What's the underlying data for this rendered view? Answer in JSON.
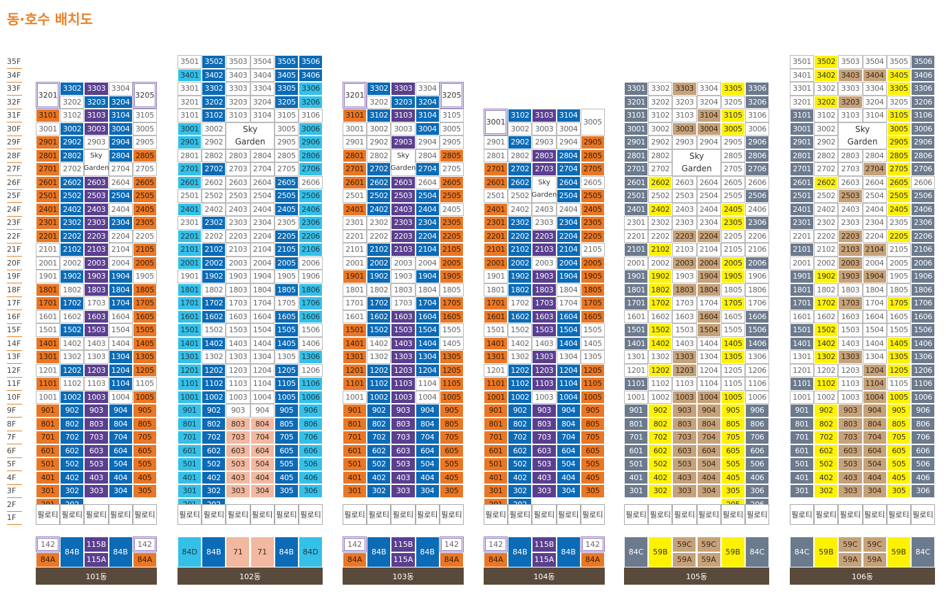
{
  "title": "동·호수 배치도",
  "floors": [
    "35F",
    "34F",
    "33F",
    "32F",
    "31F",
    "30F",
    "29F",
    "28F",
    "27F",
    "26F",
    "25F",
    "24F",
    "23F",
    "22F",
    "21F",
    "20F",
    "19F",
    "18F",
    "17F",
    "16F",
    "15F",
    "14F",
    "13F",
    "12F",
    "11F",
    "10F",
    "9F",
    "8F",
    "7F",
    "6F",
    "5F",
    "4F",
    "3F",
    "2F",
    "1F"
  ],
  "pilotis_label": "필로티",
  "sky_garden": "Sky Garden",
  "colors": {
    "orange": "#e97726",
    "blue": "#0b6bb6",
    "purple": "#5b3f8f",
    "cyan": "#35c0e8",
    "salmon": "#f2b8a0",
    "gray": "#6c7a8e",
    "yellow": "#fff200",
    "tan": "#c6a27a"
  },
  "buildings": [
    {
      "name": "101동",
      "types": [
        {
          "label": "142",
          "color": "w"
        },
        {
          "label": "84A",
          "color": "o"
        },
        {
          "label": "84B",
          "color": "b"
        },
        {
          "label": "115B",
          "color": "p"
        },
        {
          "label": "115A",
          "color": "p"
        },
        {
          "label": "84B",
          "color": "b"
        },
        {
          "label": "142",
          "color": "w"
        },
        {
          "label": "84A",
          "color": "o"
        }
      ]
    },
    {
      "name": "102동",
      "types": [
        {
          "label": "84D",
          "color": "c"
        },
        {
          "label": "84B",
          "color": "b"
        },
        {
          "label": "71",
          "color": "s"
        },
        {
          "label": "71",
          "color": "s"
        },
        {
          "label": "84B",
          "color": "b"
        },
        {
          "label": "84D",
          "color": "c"
        }
      ]
    },
    {
      "name": "103동",
      "types": [
        {
          "label": "142",
          "color": "w"
        },
        {
          "label": "84A",
          "color": "o"
        },
        {
          "label": "84B",
          "color": "b"
        },
        {
          "label": "115B",
          "color": "p"
        },
        {
          "label": "115A",
          "color": "p"
        },
        {
          "label": "84B",
          "color": "b"
        },
        {
          "label": "142",
          "color": "w"
        },
        {
          "label": "84A",
          "color": "o"
        }
      ]
    },
    {
      "name": "104동",
      "types": [
        {
          "label": "142",
          "color": "w"
        },
        {
          "label": "84A",
          "color": "o"
        },
        {
          "label": "84B",
          "color": "b"
        },
        {
          "label": "115B",
          "color": "p"
        },
        {
          "label": "115A",
          "color": "p"
        },
        {
          "label": "84B",
          "color": "b"
        },
        {
          "label": "142",
          "color": "w"
        },
        {
          "label": "84A",
          "color": "o"
        }
      ]
    },
    {
      "name": "105동",
      "types": [
        {
          "label": "84C",
          "color": "g"
        },
        {
          "label": "59B",
          "color": "y"
        },
        {
          "label": "59C",
          "color": "t"
        },
        {
          "label": "59C",
          "color": "t"
        },
        {
          "label": "59A",
          "color": "t"
        },
        {
          "label": "59A",
          "color": "t"
        },
        {
          "label": "59B",
          "color": "y"
        },
        {
          "label": "84C",
          "color": "g"
        }
      ]
    },
    {
      "name": "106동",
      "types": [
        {
          "label": "84C",
          "color": "g"
        },
        {
          "label": "59B",
          "color": "y"
        },
        {
          "label": "59C",
          "color": "t"
        },
        {
          "label": "59C",
          "color": "t"
        },
        {
          "label": "59A",
          "color": "t"
        },
        {
          "label": "59A",
          "color": "t"
        },
        {
          "label": "59B",
          "color": "y"
        },
        {
          "label": "84C",
          "color": "g"
        }
      ]
    }
  ]
}
